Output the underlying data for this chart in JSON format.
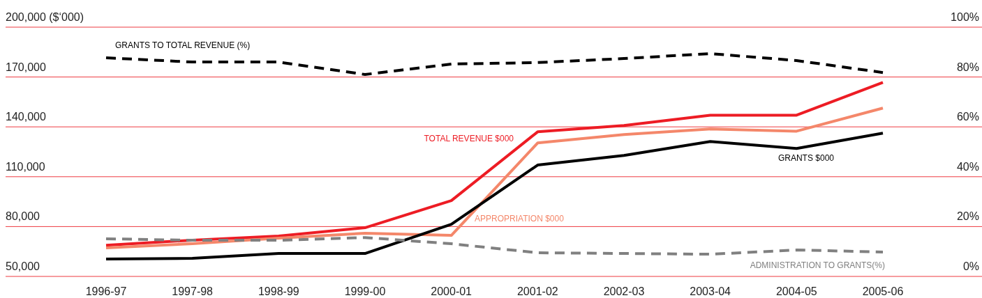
{
  "chart_data": {
    "type": "line",
    "categories": [
      "1996-97",
      "1997-98",
      "1998-99",
      "1999-00",
      "2000-01",
      "2001-02",
      "2002-03",
      "2003-04",
      "2004-05",
      "2005-06"
    ],
    "ylim": [
      50000,
      200000
    ],
    "yticks": [
      {
        "value": 50000,
        "label": "50,000"
      },
      {
        "value": 80000,
        "label": "80,000"
      },
      {
        "value": 110000,
        "label": "110,000"
      },
      {
        "value": 140000,
        "label": "140,000"
      },
      {
        "value": 170000,
        "label": "170,000"
      },
      {
        "value": 200000,
        "label": "200,000 ($‘000)"
      }
    ],
    "y2lim": [
      0,
      100
    ],
    "y2ticks": [
      {
        "value": 0,
        "label": "0%"
      },
      {
        "value": 20,
        "label": "20%"
      },
      {
        "value": 40,
        "label": "40%"
      },
      {
        "value": 60,
        "label": "60%"
      },
      {
        "value": 80,
        "label": "80%"
      },
      {
        "value": 100,
        "label": "100%"
      }
    ],
    "grid": "y",
    "marker": "none",
    "series": [
      {
        "name": "GRANTS TO TOTAL REVENUE (%)",
        "color": "#000000",
        "axis": "y2",
        "line_style": "dashed",
        "values": [
          87.7,
          86,
          86,
          81,
          85.2,
          85.8,
          87.4,
          89.4,
          86.6,
          81.8
        ]
      },
      {
        "name": "TOTAL REVENUE $000",
        "color": "#ed1c24",
        "values": [
          68800,
          71800,
          74300,
          79300,
          95600,
          137000,
          140800,
          147000,
          147000,
          166700
        ]
      },
      {
        "name": "APPROPRIATION $000",
        "color": "#f4876a",
        "values": [
          67200,
          69700,
          73000,
          76000,
          74700,
          130300,
          135400,
          138700,
          137400,
          151300
        ]
      },
      {
        "name": "GRANTS $000",
        "color": "#000000",
        "values": [
          60500,
          60900,
          63800,
          63800,
          81400,
          117000,
          122800,
          131200,
          127000,
          136200
        ]
      },
      {
        "name": "ADMINISTRATION TO GRANTS(%)",
        "color": "#808080",
        "axis": "y2",
        "line_style": "dashed",
        "values": [
          15.1,
          14.5,
          14.5,
          15.6,
          13.1,
          9.5,
          9.2,
          8.9,
          10.6,
          9.8
        ]
      }
    ]
  }
}
